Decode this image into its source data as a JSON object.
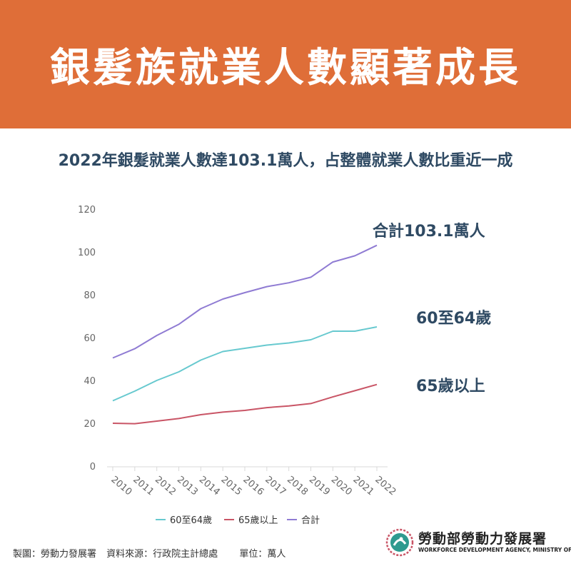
{
  "header": {
    "title": "銀髮族就業人數顯著成長"
  },
  "subtitle": "2022年銀髮就業人數達103.1萬人，占整體就業人數比重近一成",
  "series_labels": {
    "total": "合計103.1萬人",
    "age_60_64": "60至64歲",
    "age_65_plus": "65歲以上"
  },
  "footer": {
    "producer": "製圖：勞動力發展署",
    "source": "資料來源：行政院主計總處",
    "unit": "單位：萬人"
  },
  "logo": {
    "name": "勞動部勞動力發展署",
    "subtitle": "WORKFORCE DEVELOPMENT AGENCY, MINISTRY OF LABOR"
  },
  "colors": {
    "header": "#df6e38",
    "age_60_64": "#67c9cf",
    "age_65_plus": "#c95566",
    "total": "#8f7bd3",
    "label_text": "#2f4a63"
  },
  "chart_data": {
    "type": "line",
    "x": [
      "2010",
      "2011",
      "2012",
      "2013",
      "2014",
      "2015",
      "2016",
      "2017",
      "2018",
      "2019",
      "2020",
      "2021",
      "2022"
    ],
    "ylim": [
      0,
      120
    ],
    "yticks": [
      0,
      20,
      40,
      60,
      80,
      100,
      120
    ],
    "grid": false,
    "legend": "bottom",
    "series": [
      {
        "name": "60至64歲",
        "color": "#67c9cf",
        "values": [
          30.5,
          35,
          40,
          44,
          49.5,
          53.5,
          55,
          56.5,
          57.5,
          59,
          63,
          63,
          65
        ]
      },
      {
        "name": "65歲以上",
        "color": "#c95566",
        "values": [
          20,
          19.8,
          21,
          22.2,
          24,
          25.2,
          26,
          27.3,
          28.1,
          29.2,
          32.3,
          35.2,
          38.1
        ]
      },
      {
        "name": "合計",
        "color": "#8f7bd3",
        "values": [
          50.5,
          54.8,
          61,
          66.2,
          73.5,
          78,
          81,
          83.8,
          85.6,
          88.2,
          95.3,
          98.2,
          103.1
        ]
      }
    ]
  }
}
